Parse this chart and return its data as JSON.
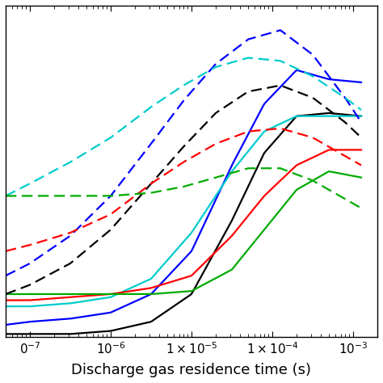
{
  "xlabel": "Discharge gas residence time (s)",
  "xlim_log": [
    -7.3,
    -2.7
  ],
  "ylim": [
    0.0,
    1.08
  ],
  "xlabel_fontsize": 13,
  "tick_fontsize": 11,
  "line_width": 1.6,
  "solid_lines": [
    {
      "color": "#000000",
      "x_log": [
        -7.3,
        -7.0,
        -6.5,
        -6.0,
        -5.5,
        -5.0,
        -4.5,
        -4.1,
        -3.7,
        -3.3,
        -2.9
      ],
      "y": [
        0.01,
        0.01,
        0.01,
        0.02,
        0.05,
        0.14,
        0.38,
        0.6,
        0.72,
        0.73,
        0.72
      ]
    },
    {
      "color": "#0000FF",
      "x_log": [
        -7.3,
        -7.0,
        -6.5,
        -6.0,
        -5.5,
        -5.0,
        -4.5,
        -4.1,
        -3.7,
        -3.3,
        -2.9
      ],
      "y": [
        0.04,
        0.05,
        0.06,
        0.08,
        0.14,
        0.28,
        0.56,
        0.76,
        0.87,
        0.84,
        0.83
      ]
    },
    {
      "color": "#00CCCC",
      "x_log": [
        -7.3,
        -7.0,
        -6.5,
        -6.0,
        -5.5,
        -5.0,
        -4.5,
        -4.1,
        -3.7,
        -3.3,
        -2.9
      ],
      "y": [
        0.1,
        0.1,
        0.11,
        0.13,
        0.19,
        0.34,
        0.54,
        0.67,
        0.72,
        0.72,
        0.72
      ]
    },
    {
      "color": "#FF0000",
      "x_log": [
        -7.3,
        -7.0,
        -6.5,
        -6.0,
        -5.5,
        -5.0,
        -4.5,
        -4.1,
        -3.7,
        -3.3,
        -2.9
      ],
      "y": [
        0.12,
        0.12,
        0.13,
        0.14,
        0.16,
        0.2,
        0.33,
        0.46,
        0.56,
        0.61,
        0.61
      ]
    },
    {
      "color": "#00AA00",
      "x_log": [
        -7.3,
        -7.0,
        -6.5,
        -6.0,
        -5.5,
        -5.0,
        -4.5,
        -4.1,
        -3.7,
        -3.3,
        -2.9
      ],
      "y": [
        0.14,
        0.14,
        0.14,
        0.14,
        0.14,
        0.15,
        0.22,
        0.35,
        0.48,
        0.54,
        0.52
      ]
    }
  ],
  "dashed_lines": [
    {
      "color": "#0000FF",
      "x_log": [
        -7.3,
        -7.0,
        -6.5,
        -6.0,
        -5.5,
        -5.1,
        -4.7,
        -4.3,
        -3.9,
        -3.5,
        -3.1,
        -2.9
      ],
      "y": [
        0.2,
        0.24,
        0.33,
        0.46,
        0.63,
        0.77,
        0.89,
        0.97,
        1.0,
        0.92,
        0.78,
        0.7
      ]
    },
    {
      "color": "#00CCCC",
      "x_log": [
        -7.3,
        -7.0,
        -6.5,
        -6.0,
        -5.5,
        -5.1,
        -4.7,
        -4.3,
        -3.9,
        -3.5,
        -3.1,
        -2.9
      ],
      "y": [
        0.46,
        0.5,
        0.57,
        0.65,
        0.75,
        0.82,
        0.88,
        0.91,
        0.9,
        0.85,
        0.78,
        0.74
      ]
    },
    {
      "color": "#000000",
      "x_log": [
        -7.3,
        -7.0,
        -6.5,
        -6.0,
        -5.5,
        -5.1,
        -4.7,
        -4.3,
        -3.9,
        -3.5,
        -3.1,
        -2.9
      ],
      "y": [
        0.14,
        0.17,
        0.24,
        0.35,
        0.5,
        0.62,
        0.73,
        0.8,
        0.82,
        0.78,
        0.7,
        0.65
      ]
    },
    {
      "color": "#FF0000",
      "x_log": [
        -7.3,
        -7.0,
        -6.5,
        -6.0,
        -5.5,
        -5.1,
        -4.7,
        -4.3,
        -3.9,
        -3.5,
        -3.1,
        -2.9
      ],
      "y": [
        0.28,
        0.3,
        0.34,
        0.4,
        0.5,
        0.57,
        0.63,
        0.67,
        0.68,
        0.65,
        0.59,
        0.56
      ]
    },
    {
      "color": "#00AA00",
      "x_log": [
        -7.3,
        -7.0,
        -6.5,
        -6.0,
        -5.5,
        -5.1,
        -4.7,
        -4.3,
        -3.9,
        -3.5,
        -3.1,
        -2.9
      ],
      "y": [
        0.46,
        0.46,
        0.46,
        0.46,
        0.47,
        0.49,
        0.52,
        0.55,
        0.55,
        0.51,
        0.45,
        0.42
      ]
    }
  ]
}
